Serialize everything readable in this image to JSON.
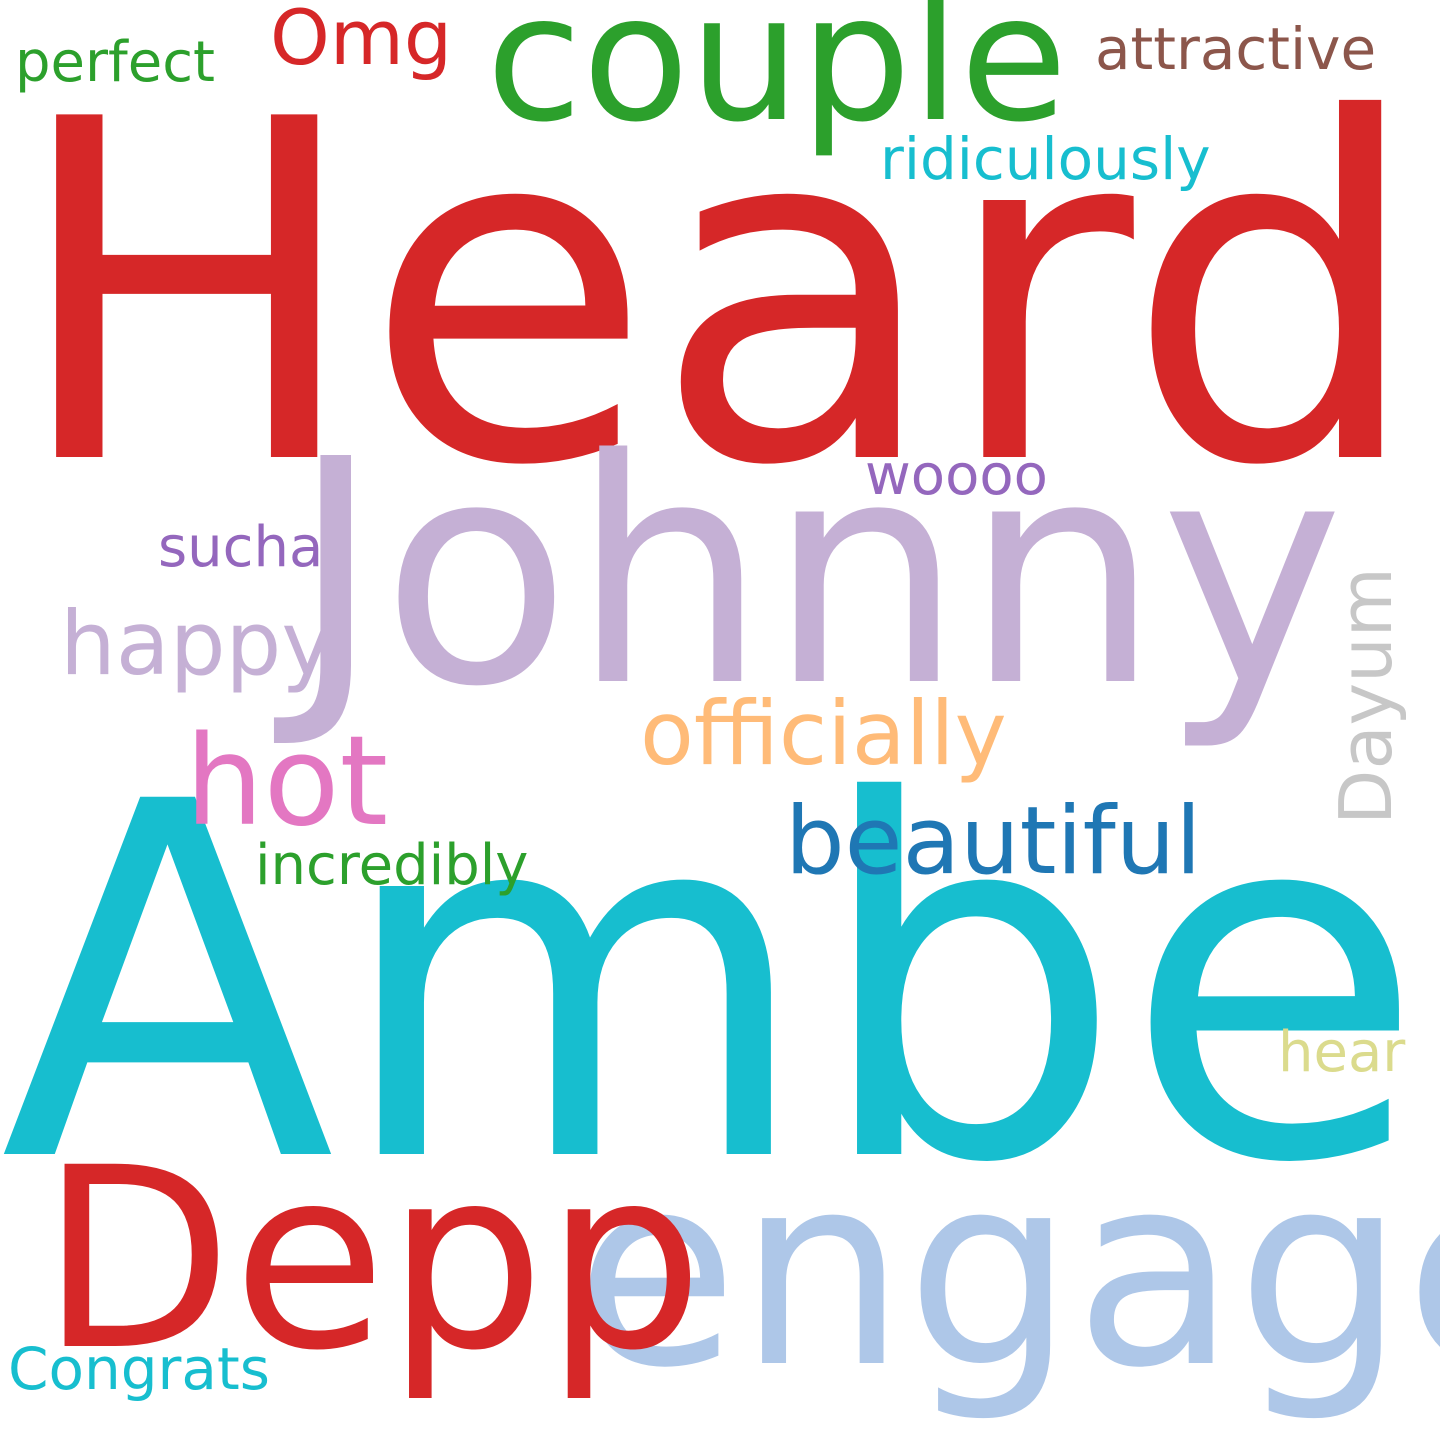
{
  "word_cloud": {
    "words": [
      {
        "text": "Heard",
        "color": "#d62728"
      },
      {
        "text": "Amber",
        "color": "#17becf"
      },
      {
        "text": "Johnny",
        "color": "#c5b0d5"
      },
      {
        "text": "couple",
        "color": "#2ca02c"
      },
      {
        "text": "engaged",
        "color": "#aec7e8"
      },
      {
        "text": "Depp",
        "color": "#d62728"
      },
      {
        "text": "beautiful",
        "color": "#1f77b4"
      },
      {
        "text": "hot",
        "color": "#e377c2"
      },
      {
        "text": "officially",
        "color": "#ffbb78"
      },
      {
        "text": "happy",
        "color": "#c5b0d5"
      },
      {
        "text": "Dayum",
        "color": "#c7c7c7"
      },
      {
        "text": "Omg",
        "color": "#d62728"
      },
      {
        "text": "attractive",
        "color": "#8c564b"
      },
      {
        "text": "ridiculously",
        "color": "#17becf"
      },
      {
        "text": "perfect",
        "color": "#2ca02c"
      },
      {
        "text": "incredibly",
        "color": "#2ca02c"
      },
      {
        "text": "sucha",
        "color": "#9467bd"
      },
      {
        "text": "woooo",
        "color": "#9467bd"
      },
      {
        "text": "hear",
        "color": "#dbdb8d"
      },
      {
        "text": "Congrats",
        "color": "#17becf"
      }
    ]
  }
}
